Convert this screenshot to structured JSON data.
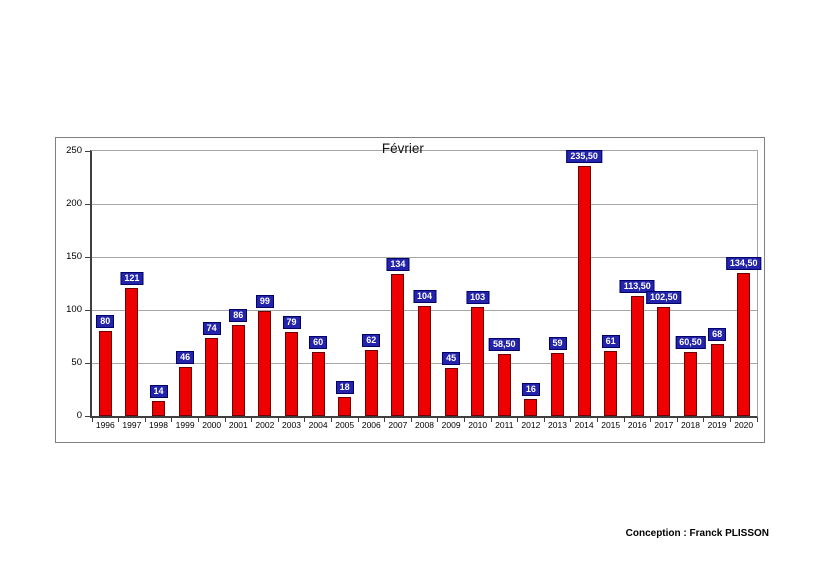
{
  "chart_data": {
    "type": "bar",
    "title": "Février",
    "categories": [
      "1996",
      "1997",
      "1998",
      "1999",
      "2000",
      "2001",
      "2002",
      "2003",
      "2004",
      "2005",
      "2006",
      "2007",
      "2008",
      "2009",
      "2010",
      "2011",
      "2012",
      "2013",
      "2014",
      "2015",
      "2016",
      "2017",
      "2018",
      "2019",
      "2020"
    ],
    "values": [
      80,
      121,
      14,
      46,
      74,
      86,
      99,
      79,
      60,
      18,
      62,
      134,
      104,
      45,
      103,
      58.5,
      16,
      59,
      235.5,
      61,
      113.5,
      102.5,
      60.5,
      68,
      134.5
    ],
    "value_labels": [
      "80",
      "121",
      "14",
      "46",
      "74",
      "86",
      "99",
      "79",
      "60",
      "18",
      "62",
      "134",
      "104",
      "45",
      "103",
      "58,50",
      "16",
      "59",
      "235,50",
      "61",
      "113,50",
      "102,50",
      "60,50",
      "68",
      "134,50"
    ],
    "xlabel": "",
    "ylabel": "",
    "yticks": [
      0,
      50,
      100,
      150,
      200,
      250
    ],
    "ylim": [
      0,
      250
    ],
    "grid": true,
    "legend": "none",
    "colors": {
      "bar_fill": "#ee0000",
      "bar_border": "#6b0000",
      "value_label_bg": "#2323ab",
      "value_label_border": "#000066",
      "value_label_text": "#ffffff",
      "gridline": "#a6a6a6",
      "axis": "#3f3f3f"
    }
  },
  "footer": {
    "credit": "Conception : Franck PLISSON"
  }
}
